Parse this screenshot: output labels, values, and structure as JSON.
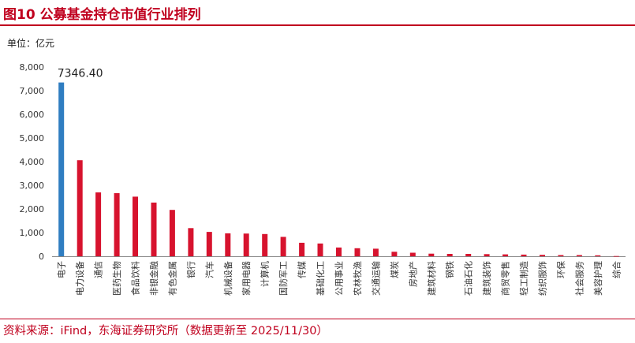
{
  "figure": {
    "title": "图10  公募基金持仓市值行业排列",
    "unit": "单位：亿元",
    "source": "资料来源：iFind，东海证券研究所（数据更新至 2025/11/30）"
  },
  "colors": {
    "highlight": "#2f7dc1",
    "bar": "#d7132e",
    "accent": "#c0001e"
  },
  "chart_data": {
    "type": "bar",
    "title": "公募基金持仓市值行业排列",
    "ylabel": "单位：亿元",
    "xlabel": "",
    "ylim": [
      0,
      8000
    ],
    "yticks": [
      "0",
      "1,000",
      "2,000",
      "3,000",
      "4,000",
      "5,000",
      "6,000",
      "7,000",
      "8,000"
    ],
    "grid": false,
    "legend": "none",
    "categories": [
      "电子",
      "电力设备",
      "通信",
      "医药生物",
      "食品饮料",
      "非银金融",
      "有色金属",
      "银行",
      "汽车",
      "机械设备",
      "家用电器",
      "计算机",
      "国防军工",
      "传媒",
      "基础化工",
      "公用事业",
      "农林牧渔",
      "交通运输",
      "煤炭",
      "房地产",
      "建筑材料",
      "钢铁",
      "石油石化",
      "建筑装饰",
      "商贸零售",
      "轻工制造",
      "纺织服饰",
      "环保",
      "社会服务",
      "美容护理",
      "综合"
    ],
    "values": [
      7346.4,
      4060,
      2700,
      2670,
      2520,
      2270,
      1960,
      1190,
      1030,
      970,
      960,
      940,
      820,
      570,
      540,
      370,
      340,
      320,
      190,
      150,
      110,
      100,
      100,
      90,
      80,
      70,
      60,
      50,
      50,
      40,
      10
    ],
    "data_labels": [
      {
        "index": 0,
        "text": "7346.40"
      }
    ]
  }
}
